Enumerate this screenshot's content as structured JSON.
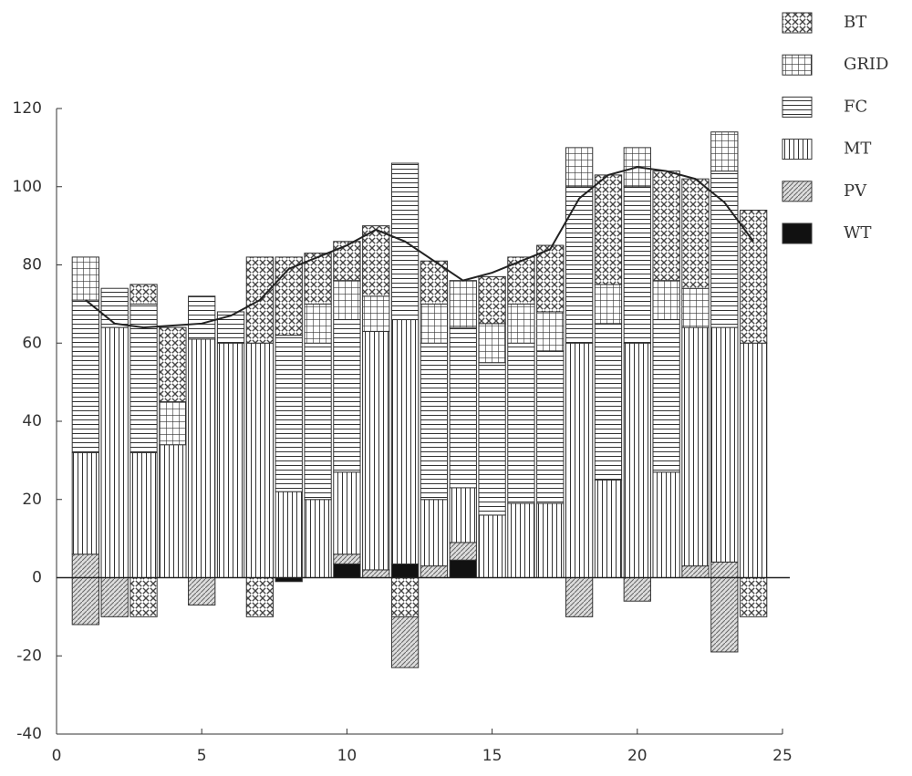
{
  "chart_data": {
    "type": "stacked_bar_line",
    "x": [
      1,
      2,
      3,
      4,
      5,
      6,
      7,
      8,
      9,
      10,
      11,
      12,
      13,
      14,
      15,
      16,
      17,
      18,
      19,
      20,
      21,
      22,
      23,
      24
    ],
    "series": [
      {
        "name": "BT",
        "hatch": "checker",
        "values": [
          0,
          0,
          5,
          19,
          0,
          0,
          22,
          20,
          13,
          10,
          18,
          0,
          11,
          0,
          12,
          12,
          17,
          0,
          28,
          0,
          28,
          28,
          0,
          34
        ]
      },
      {
        "name": "GRID",
        "hatch": "grid",
        "values": [
          11,
          0,
          0,
          11,
          0,
          0,
          0,
          0,
          10,
          10,
          9,
          0,
          10,
          12,
          10,
          10,
          10,
          10,
          10,
          10,
          10,
          10,
          10,
          0
        ]
      },
      {
        "name": "FC",
        "hatch": "horizontal",
        "values": [
          39,
          10,
          38,
          0,
          11,
          8,
          0,
          40,
          40,
          39,
          0,
          40,
          40,
          41,
          39,
          41,
          39,
          40,
          40,
          40,
          39,
          0,
          40,
          0
        ]
      },
      {
        "name": "MT",
        "hatch": "vertical",
        "values": [
          26,
          64,
          32,
          34,
          61,
          60,
          60,
          22,
          20,
          21,
          61,
          62.5,
          17,
          14,
          16,
          19,
          19,
          60,
          25,
          60,
          27,
          61,
          60,
          60
        ]
      },
      {
        "name": "PV",
        "hatch": "diagonal",
        "values": [
          6,
          0,
          0,
          0,
          0,
          0,
          0,
          0,
          0,
          2.5,
          2,
          0,
          3,
          4.5,
          0,
          0,
          0,
          0,
          0,
          0,
          0,
          3,
          4,
          0
        ]
      },
      {
        "name": "WT",
        "hatch": "solid",
        "values": [
          0,
          0,
          0,
          0,
          0,
          0,
          0,
          0,
          0,
          3.5,
          0,
          3.5,
          0,
          4.5,
          0,
          0,
          0,
          0,
          0,
          0,
          0,
          0,
          0,
          0
        ]
      }
    ],
    "negative_series": [
      {
        "name": "WT",
        "hatch": "solid",
        "values": [
          0,
          0,
          0,
          0,
          0,
          0,
          0,
          -1,
          0,
          0,
          0,
          0,
          0,
          0,
          0,
          0,
          0,
          0,
          0,
          0,
          0,
          0,
          0,
          0
        ]
      },
      {
        "name": "BT",
        "hatch": "checker",
        "values": [
          0,
          0,
          -10,
          0,
          0,
          0,
          -10,
          0,
          0,
          0,
          0,
          -10,
          0,
          0,
          0,
          0,
          0,
          0,
          0,
          0,
          0,
          0,
          0,
          -10
        ]
      },
      {
        "name": "PV",
        "hatch": "diagonal",
        "values": [
          -12,
          -10,
          0,
          0,
          -7,
          0,
          0,
          0,
          0,
          0,
          0,
          -13,
          0,
          0,
          0,
          0,
          0,
          -10,
          0,
          -6,
          0,
          0,
          -19,
          0
        ]
      }
    ],
    "line": {
      "color": "#222222",
      "values": [
        71,
        65,
        64,
        64.5,
        65,
        67,
        71,
        79,
        82,
        85,
        89,
        86,
        81,
        76,
        78,
        81,
        84,
        97,
        103,
        105,
        104,
        102,
        96,
        86
      ]
    },
    "xlim": [
      0,
      25
    ],
    "xticks": [
      0,
      5,
      10,
      15,
      20,
      25
    ],
    "ylim": [
      -40,
      120
    ],
    "yticks": [
      -40,
      -20,
      0,
      20,
      40,
      60,
      80,
      100,
      120
    ],
    "grid": false,
    "legend": "top-right"
  }
}
